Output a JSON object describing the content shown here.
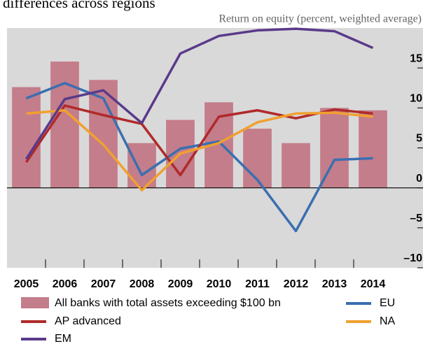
{
  "chart_data": {
    "type": "bar_line",
    "title": "differences across regions",
    "subtitle": "Return on equity (percent, weighted average)",
    "categories": [
      "2005",
      "2006",
      "2007",
      "2008",
      "2009",
      "2010",
      "2011",
      "2012",
      "2013",
      "2014"
    ],
    "bars": {
      "name": "All banks with total assets exceeding $100 bn",
      "color": "#c47d8a",
      "values": [
        12.6,
        15.8,
        13.5,
        5.6,
        8.5,
        10.7,
        7.4,
        5.6,
        10.0,
        9.7
      ]
    },
    "series": [
      {
        "name": "EU",
        "color": "#3a6fb0",
        "values": [
          11.2,
          13.1,
          11.2,
          1.6,
          4.9,
          5.8,
          1.0,
          -5.4,
          3.5,
          3.7
        ]
      },
      {
        "name": "AP advanced",
        "color": "#b02a2a",
        "values": [
          3.2,
          10.3,
          9.1,
          8.0,
          1.6,
          8.9,
          9.7,
          8.7,
          9.8,
          9.3
        ]
      },
      {
        "name": "NA",
        "color": "#f0a030",
        "values": [
          9.3,
          9.7,
          5.4,
          -0.3,
          4.3,
          5.6,
          8.2,
          9.3,
          9.4,
          8.9
        ]
      },
      {
        "name": "EM",
        "color": "#5a3a8a",
        "values": [
          3.6,
          11.1,
          12.2,
          8.1,
          16.8,
          19.0,
          19.7,
          19.9,
          19.6,
          17.5
        ]
      }
    ],
    "ylim": [
      -10,
      20
    ],
    "yticks": [
      {
        "value": -10,
        "label": "–10"
      },
      {
        "value": -5,
        "label": "–5"
      },
      0,
      5,
      10,
      15
    ]
  }
}
